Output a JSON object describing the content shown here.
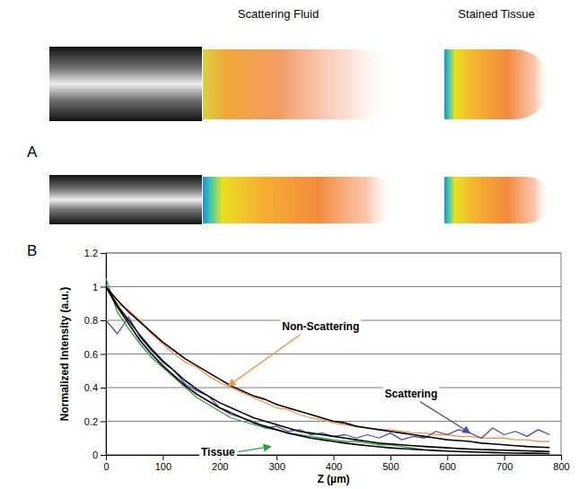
{
  "chart_data": {
    "type": "line",
    "panel_label": "B",
    "x_label": "Z (µm)",
    "y_label": "Normalized Intensity (a.u.)",
    "x": [
      0,
      20,
      40,
      60,
      80,
      100,
      120,
      140,
      160,
      180,
      200,
      220,
      240,
      260,
      280,
      300,
      320,
      340,
      360,
      380,
      400,
      420,
      440,
      460,
      480,
      500,
      520,
      540,
      560,
      580,
      600,
      620,
      640,
      660,
      680,
      700,
      720,
      740,
      760,
      780
    ],
    "series": [
      {
        "name": "Non-Scattering",
        "color": "#f7934a",
        "values": [
          1.0,
          0.9,
          0.86,
          0.8,
          0.72,
          0.66,
          0.6,
          0.55,
          0.52,
          0.47,
          0.43,
          0.4,
          0.37,
          0.34,
          0.31,
          0.28,
          0.27,
          0.24,
          0.22,
          0.21,
          0.19,
          0.18,
          0.17,
          0.16,
          0.15,
          0.15,
          0.14,
          0.13,
          0.13,
          0.12,
          0.12,
          0.11,
          0.11,
          0.1,
          0.1,
          0.1,
          0.09,
          0.09,
          0.08,
          0.08
        ]
      },
      {
        "name": "Scattering",
        "color": "#4a4aa8",
        "values": [
          0.8,
          0.72,
          0.82,
          0.7,
          0.62,
          0.55,
          0.5,
          0.42,
          0.38,
          0.35,
          0.28,
          0.24,
          0.22,
          0.2,
          0.16,
          0.17,
          0.14,
          0.15,
          0.12,
          0.13,
          0.11,
          0.12,
          0.1,
          0.12,
          0.1,
          0.13,
          0.09,
          0.11,
          0.1,
          0.14,
          0.12,
          0.15,
          0.13,
          0.1,
          0.16,
          0.12,
          0.14,
          0.11,
          0.15,
          0.12
        ]
      },
      {
        "name": "Tissue",
        "color": "#2e9e3e",
        "values": [
          1.05,
          0.85,
          0.75,
          0.66,
          0.58,
          0.52,
          0.46,
          0.4,
          0.34,
          0.3,
          0.26,
          0.22,
          0.2,
          0.18,
          0.16,
          0.15,
          0.13,
          0.12,
          0.11,
          0.1,
          0.09,
          0.08,
          0.08,
          0.07,
          0.06,
          0.06,
          0.05,
          0.04,
          0.03,
          null,
          null,
          null,
          null,
          null,
          null,
          null,
          null,
          null,
          null,
          null
        ]
      },
      {
        "color": "#000000",
        "values": [
          1.0,
          0.92,
          0.85,
          0.79,
          0.73,
          0.67,
          0.62,
          0.57,
          0.53,
          0.49,
          0.45,
          0.41,
          0.38,
          0.35,
          0.33,
          0.3,
          0.28,
          0.26,
          0.24,
          0.22,
          0.2,
          0.19,
          0.17,
          0.16,
          0.15,
          0.14,
          0.13,
          0.12,
          0.11,
          0.1,
          0.09,
          0.085,
          0.08,
          0.07,
          0.065,
          0.06,
          0.055,
          0.05,
          0.047,
          0.044
        ]
      },
      {
        "color": "#000000",
        "values": [
          1.0,
          0.88,
          0.78,
          0.68,
          0.6,
          0.53,
          0.47,
          0.41,
          0.36,
          0.32,
          0.28,
          0.25,
          0.22,
          0.19,
          0.17,
          0.15,
          0.13,
          0.115,
          0.1,
          0.09,
          0.08,
          0.07,
          0.062,
          0.055,
          0.048,
          0.042,
          0.037,
          0.033,
          0.029,
          0.026,
          0.023,
          0.02,
          0.018,
          0.016,
          0.014,
          0.012,
          0.011,
          0.01,
          0.009,
          0.008
        ]
      },
      {
        "color": "#000000",
        "values": [
          1.0,
          0.89,
          0.8,
          0.71,
          0.63,
          0.56,
          0.5,
          0.44,
          0.39,
          0.35,
          0.31,
          0.28,
          0.25,
          0.22,
          0.2,
          0.18,
          0.16,
          0.14,
          0.13,
          0.12,
          0.11,
          0.1,
          0.09,
          0.08,
          0.07,
          0.065,
          0.06,
          0.055,
          0.05,
          0.046,
          0.042,
          0.038,
          0.035,
          0.032,
          0.03,
          0.028,
          0.026,
          0.024,
          0.022,
          0.02
        ]
      }
    ],
    "annotations": [
      {
        "text": "Non-Scattering",
        "x": 215,
        "y": 0.41
      },
      {
        "text": "Scattering",
        "x": 640,
        "y": 0.13
      },
      {
        "text": "Tissue",
        "x": 290,
        "y": 0.05
      }
    ],
    "xlim": [
      0,
      800
    ],
    "xticks": [
      0,
      100,
      200,
      300,
      400,
      500,
      600,
      700,
      800
    ],
    "ylim": [
      0,
      1.2
    ],
    "yticks": [
      0,
      0.2,
      0.4,
      0.6,
      0.8,
      1,
      1.2
    ],
    "grid": true
  },
  "panel_a": {
    "label": "A",
    "titles": [
      "Scattering Fluid",
      "Stained Tissue"
    ]
  }
}
